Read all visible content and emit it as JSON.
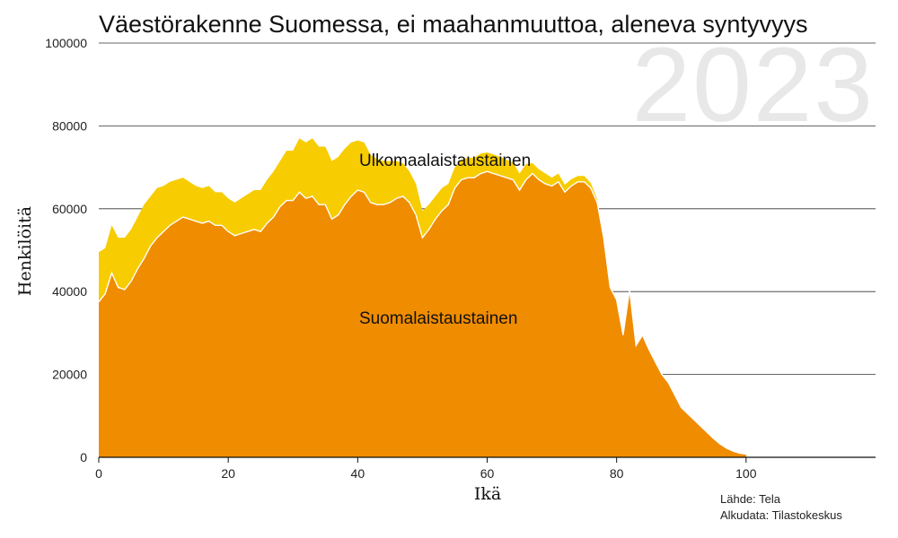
{
  "chart_data": {
    "type": "area",
    "title": "Väestörakenne Suomessa, ei maahanmuuttoa, aleneva syntyvyys",
    "year_label": "2023",
    "xlabel": "Ikä",
    "ylabel": "Henkilöitä",
    "xlim": [
      0,
      120
    ],
    "ylim": [
      0,
      100000
    ],
    "x_ticks": [
      0,
      20,
      40,
      60,
      80,
      100
    ],
    "y_ticks": [
      0,
      20000,
      40000,
      60000,
      80000,
      100000
    ],
    "grid": "horizontal",
    "stacked": true,
    "x": [
      0,
      1,
      2,
      3,
      4,
      5,
      6,
      7,
      8,
      9,
      10,
      11,
      12,
      13,
      14,
      15,
      16,
      17,
      18,
      19,
      20,
      21,
      22,
      23,
      24,
      25,
      26,
      27,
      28,
      29,
      30,
      31,
      32,
      33,
      34,
      35,
      36,
      37,
      38,
      39,
      40,
      41,
      42,
      43,
      44,
      45,
      46,
      47,
      48,
      49,
      50,
      51,
      52,
      53,
      54,
      55,
      56,
      57,
      58,
      59,
      60,
      61,
      62,
      63,
      64,
      65,
      66,
      67,
      68,
      69,
      70,
      71,
      72,
      73,
      74,
      75,
      76,
      77,
      78,
      79,
      80,
      81,
      82,
      83,
      84,
      85,
      86,
      87,
      88,
      89,
      90,
      91,
      92,
      93,
      94,
      95,
      96,
      97,
      98,
      99,
      100
    ],
    "series": [
      {
        "name": "Suomalaistaustainen",
        "color": "#f08c00",
        "values": [
          37500,
          39500,
          44500,
          41000,
          40500,
          42500,
          45500,
          48000,
          51000,
          53000,
          54500,
          56000,
          57000,
          58000,
          57500,
          57000,
          56500,
          57000,
          56000,
          56000,
          54500,
          53500,
          54000,
          54500,
          55000,
          54500,
          56500,
          58000,
          60500,
          62000,
          62000,
          64000,
          62500,
          63000,
          61000,
          61000,
          57500,
          58500,
          61000,
          63000,
          64500,
          64000,
          61500,
          61000,
          61000,
          61500,
          62500,
          63000,
          61500,
          58500,
          53000,
          55000,
          57500,
          59500,
          61000,
          65000,
          67000,
          67500,
          67500,
          68500,
          69000,
          68500,
          68000,
          67500,
          67000,
          64500,
          67000,
          68500,
          67000,
          66000,
          65500,
          66500,
          64000,
          65500,
          66500,
          66500,
          65000,
          61500,
          53000,
          41000,
          38000,
          29500,
          40500,
          27000,
          29500,
          26000,
          23000,
          20000,
          18000,
          15000,
          12000,
          10500,
          9000,
          7500,
          6000,
          4500,
          3200,
          2200,
          1500,
          1000,
          800
        ]
      },
      {
        "name": "Ulkomaalaistaustainen",
        "color": "#f7cc00",
        "values": [
          12000,
          11000,
          11500,
          12000,
          12500,
          12500,
          12500,
          13000,
          12000,
          12000,
          11000,
          10500,
          10000,
          9500,
          9000,
          8500,
          8500,
          8500,
          8000,
          8000,
          8000,
          8000,
          8500,
          9000,
          9500,
          10000,
          10500,
          11000,
          11000,
          12000,
          12000,
          13000,
          13500,
          14000,
          14000,
          14000,
          14000,
          14000,
          13500,
          13000,
          12000,
          12000,
          11500,
          11000,
          10500,
          10000,
          9000,
          8000,
          7500,
          7500,
          6500,
          6000,
          5500,
          5500,
          5000,
          5000,
          4800,
          4800,
          4800,
          4800,
          4600,
          4600,
          4500,
          4300,
          4200,
          4000,
          3800,
          2500,
          2500,
          2500,
          2000,
          2000,
          1800,
          1600,
          1400,
          1400,
          1200,
          800,
          600,
          400,
          300,
          200,
          200,
          100,
          100,
          100,
          0,
          0,
          0,
          0,
          0,
          0,
          0,
          0,
          0,
          0,
          0,
          0,
          0,
          0,
          0
        ]
      }
    ],
    "labels": {
      "upper": "Ulkomaalaistaustainen",
      "lower": "Suomalaistaustainen"
    }
  },
  "source": {
    "line1": "Lähde: Tela",
    "line2": "Alkudata: Tilastokeskus"
  }
}
